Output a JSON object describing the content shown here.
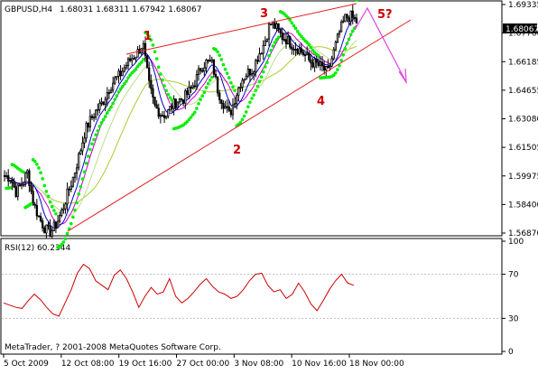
{
  "window": {
    "symbol_header": "GBPUSD,H4",
    "ohlc_header": "1.68031 1.68311 1.67942 1.68067",
    "copyright": "MetaTrader, ? 2001-2008 MetaQuotes Software Corp."
  },
  "price_axis": {
    "ticks": [
      "1.69335",
      "1.67760",
      "1.66185",
      "1.64655",
      "1.63080",
      "1.61505",
      "1.59975",
      "1.58400",
      "1.56870"
    ],
    "current_price": "1.68067",
    "ylim": [
      1.5687,
      1.69335
    ]
  },
  "rsi_panel": {
    "header": "RSI(12) 60.2344",
    "ticks": [
      "100",
      "70",
      "30",
      "0"
    ],
    "levels": [
      70,
      30
    ]
  },
  "time_axis": {
    "labels": [
      "5 Oct 2009",
      "12 Oct 08:00",
      "19 Oct 16:00",
      "27 Oct 00:00",
      "3 Nov 08:00",
      "10 Nov 16:00",
      "18 Nov 00:00"
    ]
  },
  "wave_labels": {
    "w1": "1",
    "w2": "2",
    "w3": "3",
    "w4": "4",
    "w5": "5?"
  },
  "colors": {
    "candles": "#000000",
    "channel": "#e02020",
    "wave_label": "#cc0000",
    "arrow": "#e040e0",
    "parabolic_sar": "#00ee00",
    "ma_fast": "#0000cc",
    "ma_mid": "#cc00cc",
    "ma_slow": "#aacc33",
    "rsi_line": "#cc0000",
    "rsi_levels": "#c0c0c0"
  },
  "chart_data": {
    "type": "candlestick",
    "price_path": [
      1.6,
      1.599,
      1.591,
      1.596,
      1.602,
      1.585,
      1.577,
      1.571,
      1.569,
      1.574,
      1.581,
      1.591,
      1.6,
      1.612,
      1.625,
      1.631,
      1.636,
      1.64,
      1.647,
      1.652,
      1.655,
      1.66,
      1.664,
      1.667,
      1.672,
      1.65,
      1.638,
      1.634,
      1.633,
      1.638,
      1.641,
      1.642,
      1.646,
      1.651,
      1.659,
      1.662,
      1.661,
      1.646,
      1.639,
      1.633,
      1.643,
      1.652,
      1.656,
      1.658,
      1.666,
      1.672,
      1.683,
      1.681,
      1.676,
      1.674,
      1.671,
      1.669,
      1.666,
      1.662,
      1.661,
      1.659,
      1.656,
      1.667,
      1.678,
      1.686,
      1.687,
      1.684
    ],
    "rsi_values": [
      44,
      42,
      40,
      39,
      46,
      52,
      47,
      40,
      34,
      32,
      44,
      56,
      71,
      79,
      75,
      64,
      60,
      56,
      69,
      74,
      66,
      54,
      40,
      50,
      58,
      52,
      54,
      66,
      50,
      44,
      48,
      54,
      61,
      66,
      59,
      54,
      52,
      48,
      50,
      56,
      64,
      70,
      71,
      60,
      54,
      56,
      48,
      52,
      62,
      54,
      43,
      37,
      46,
      56,
      64,
      70,
      62,
      60
    ]
  }
}
